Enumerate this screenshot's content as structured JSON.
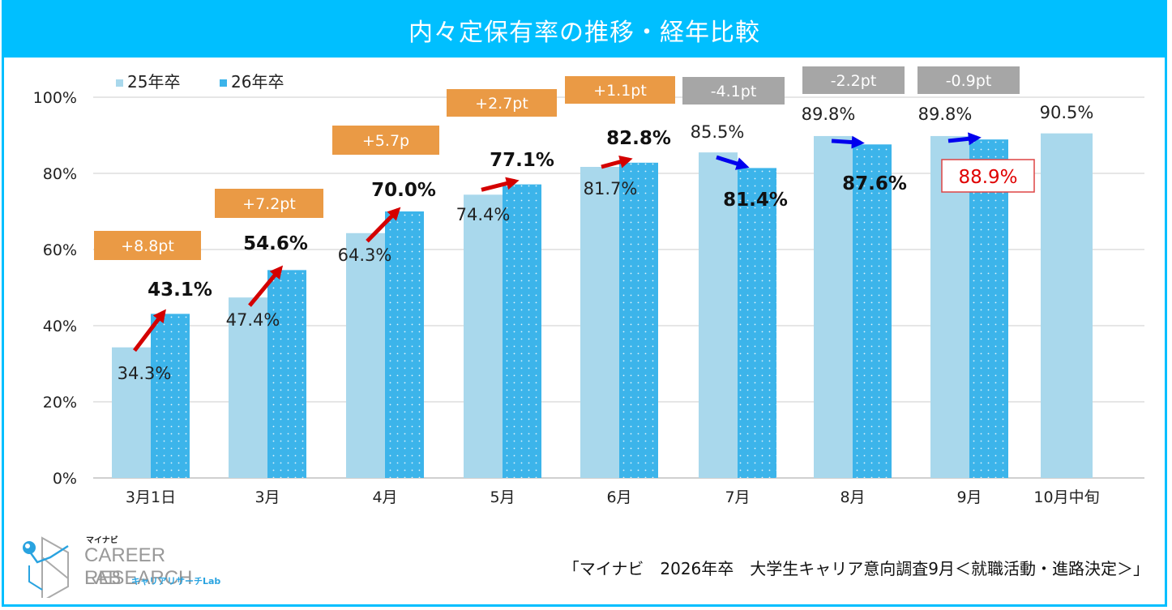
{
  "page": {
    "title": "内々定保有率の推移・経年比較",
    "source": "「マイナビ　2026年卒　大学生キャリア意向調査9月＜就職活動・進路決定＞」",
    "logo": {
      "small": "マイナビ",
      "line1": "CAREER RESEARCH",
      "line2": "LAB",
      "jp": "キャリアリサーチLab"
    }
  },
  "colors": {
    "frame": "#00bfff",
    "series25": "#a9d8ec",
    "series26": "#3cb4ea",
    "up_box": "#ea9a45",
    "down_box": "#a6a6a6",
    "up_arrow": "#d40000",
    "down_arrow": "#0000ee",
    "highlight": "#e00000"
  },
  "chart_data": {
    "type": "bar",
    "title": "内々定保有率の推移・経年比較",
    "xlabel": "",
    "ylabel": "",
    "ylim": [
      0,
      100
    ],
    "yticks": [
      "0%",
      "20%",
      "40%",
      "60%",
      "80%",
      "100%"
    ],
    "grid": true,
    "legend_position": "top-left",
    "categories": [
      "3月1日",
      "3月",
      "4月",
      "5月",
      "6月",
      "7月",
      "8月",
      "9月",
      "10月中旬"
    ],
    "series": [
      {
        "name": "25年卒",
        "values": [
          34.3,
          47.4,
          64.3,
          74.4,
          81.7,
          85.5,
          89.8,
          89.8,
          90.5
        ],
        "labels": [
          "34.3%",
          "47.4%",
          "64.3%",
          "74.4%",
          "81.7%",
          "85.5%",
          "89.8%",
          "89.8%",
          "90.5%"
        ]
      },
      {
        "name": "26年卒",
        "values": [
          43.1,
          54.6,
          70.0,
          77.1,
          82.8,
          81.4,
          87.6,
          88.9,
          null
        ],
        "labels": [
          "43.1%",
          "54.6%",
          "70.0%",
          "77.1%",
          "82.8%",
          "81.4%",
          "87.6%",
          "88.9%",
          null
        ]
      }
    ],
    "annotations": {
      "differences": [
        "+8.8pt",
        "+7.2pt",
        "+5.7p",
        "+2.7pt",
        "+1.1pt",
        "-4.1pt",
        "-2.2pt",
        "-0.9pt",
        null
      ],
      "direction": [
        "up",
        "up",
        "up",
        "up",
        "up",
        "down",
        "down",
        "down",
        null
      ],
      "highlighted_label_index": 7
    }
  }
}
